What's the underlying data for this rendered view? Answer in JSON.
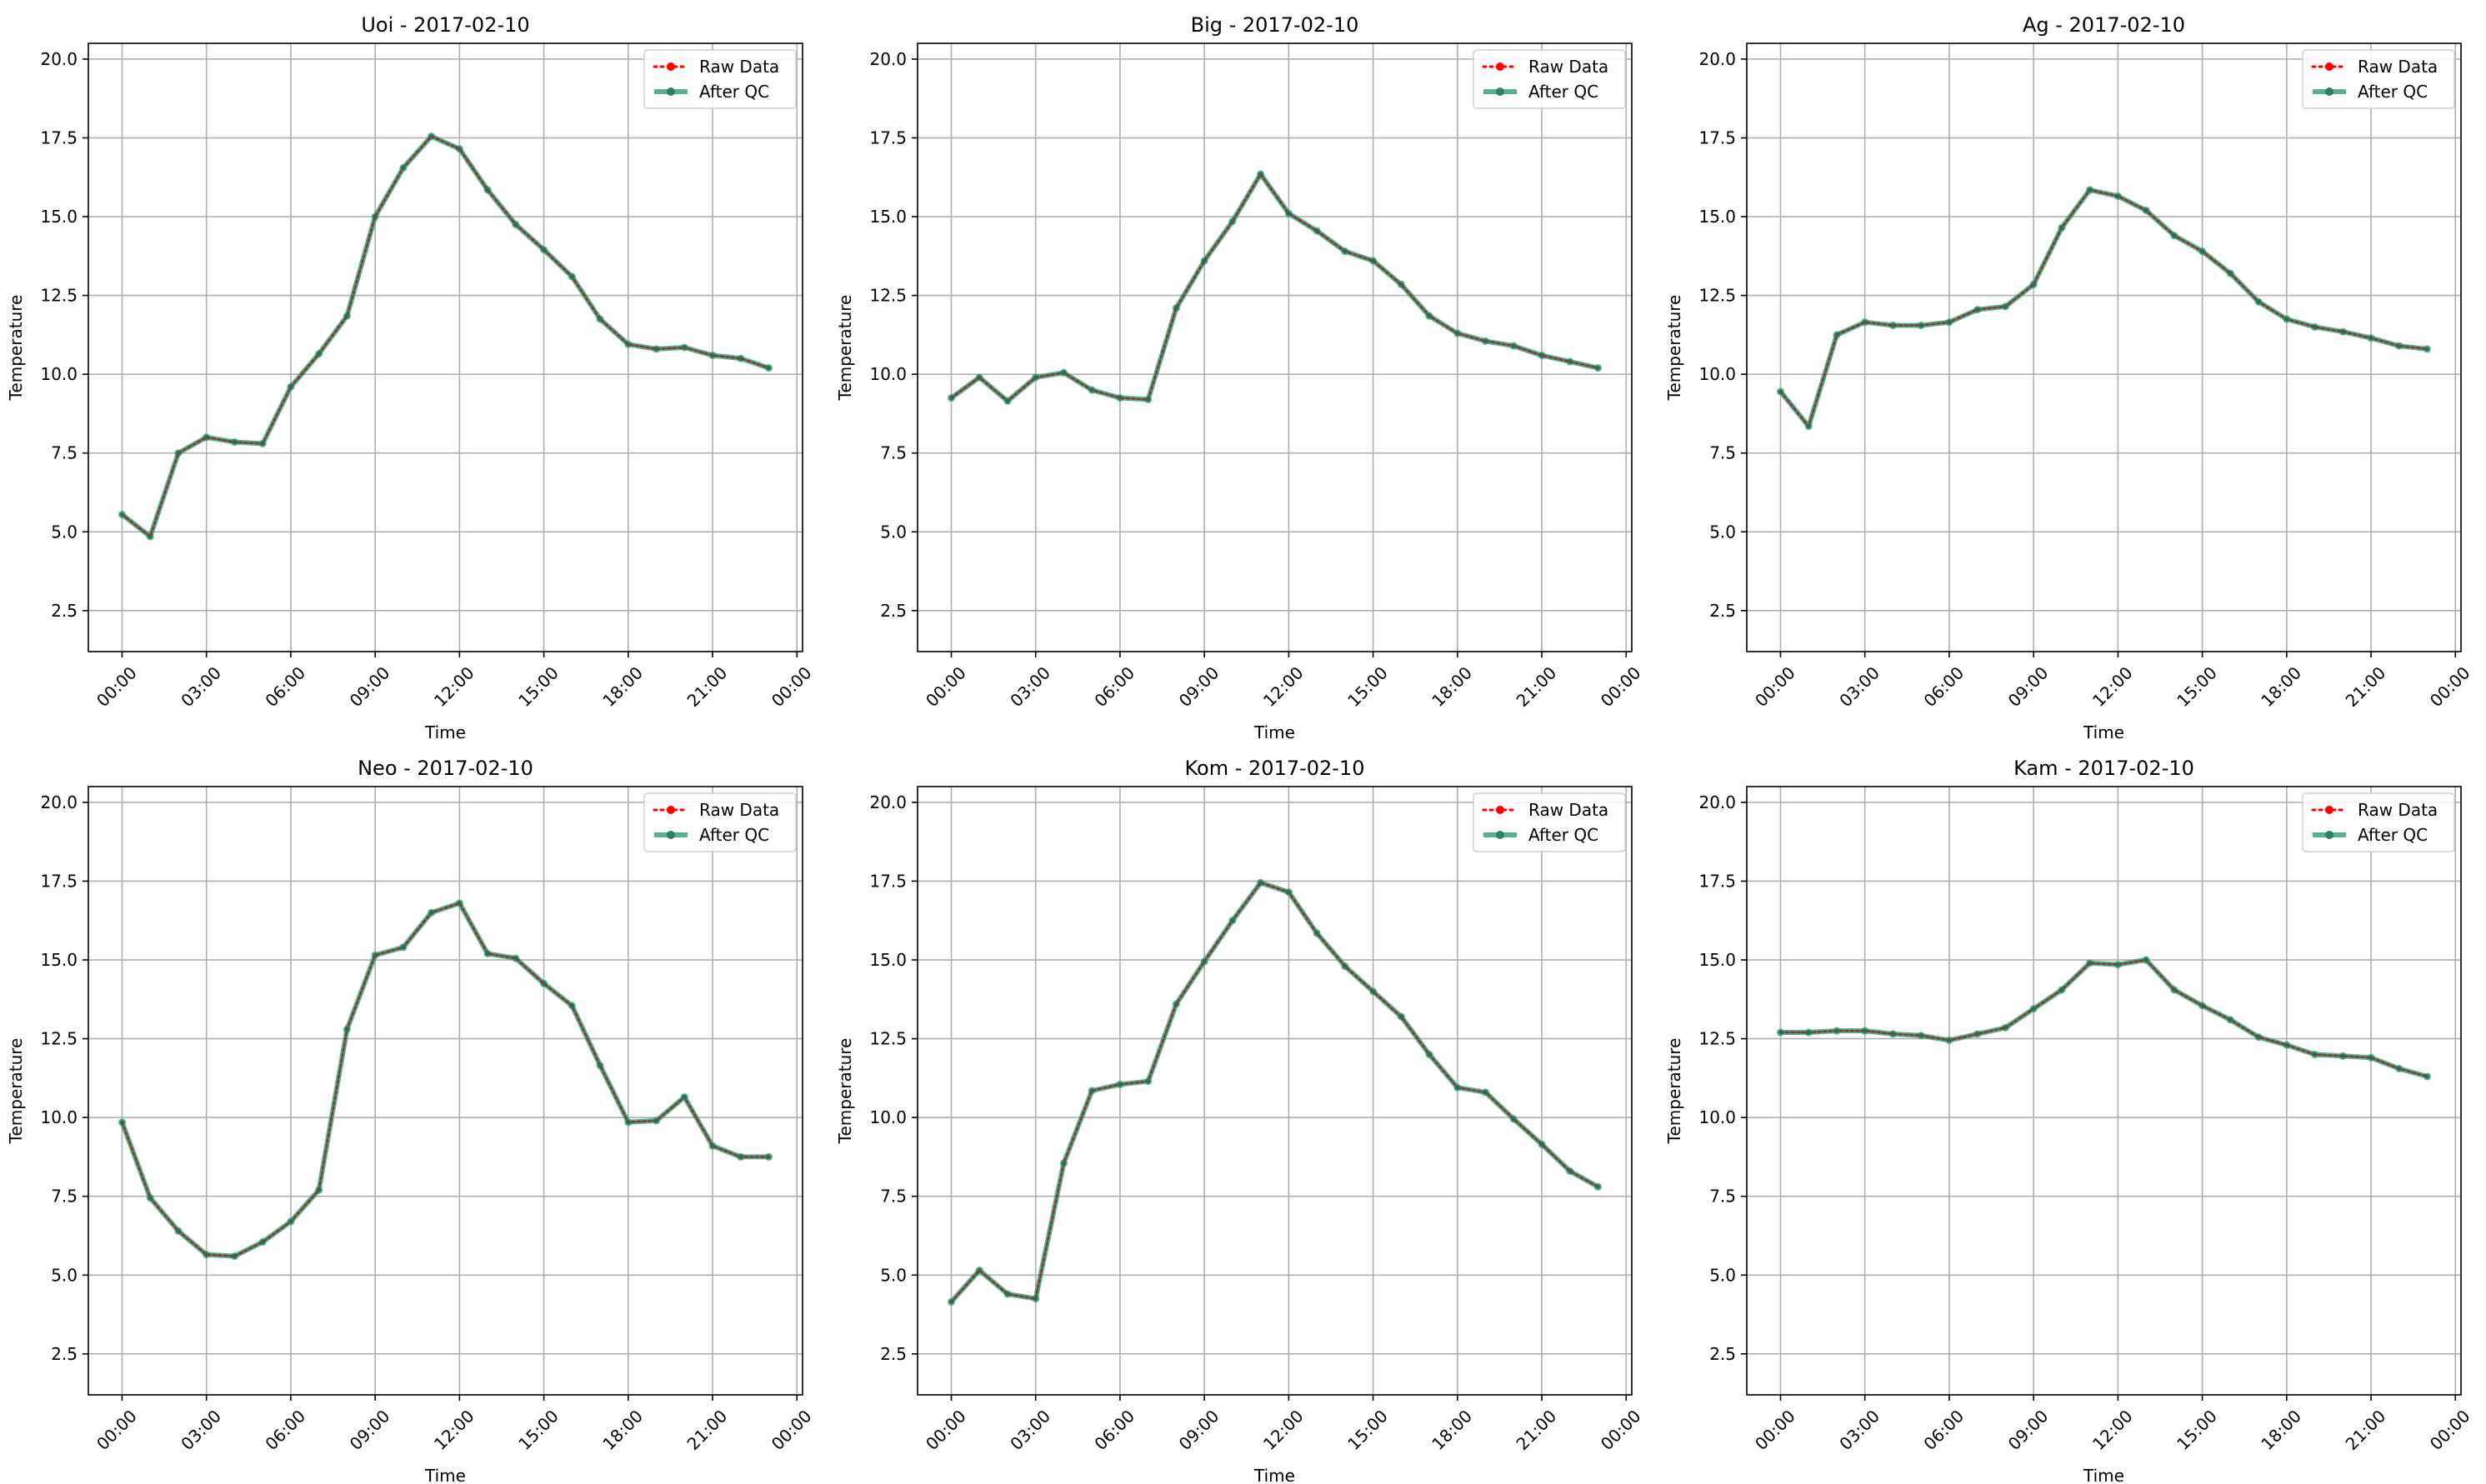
{
  "chart_data": [
    {
      "type": "line",
      "title": "Uoi - 2017-02-10",
      "xlabel": "Time",
      "ylabel": "Temperature",
      "xlim_hours": [
        -1.2,
        24.2
      ],
      "ylim": [
        1.2,
        20.5
      ],
      "xticks": [
        "00:00",
        "03:00",
        "06:00",
        "09:00",
        "12:00",
        "15:00",
        "18:00",
        "21:00",
        "00:00"
      ],
      "yticks": [
        "2.5",
        "5.0",
        "7.5",
        "10.0",
        "12.5",
        "15.0",
        "17.5",
        "20.0"
      ],
      "grid": true,
      "legend_position": "top-right",
      "x": [
        "00:00",
        "01:00",
        "02:00",
        "03:00",
        "04:00",
        "05:00",
        "06:00",
        "07:00",
        "08:00",
        "09:00",
        "10:00",
        "11:00",
        "12:00",
        "13:00",
        "14:00",
        "15:00",
        "16:00",
        "17:00",
        "18:00",
        "19:00",
        "20:00",
        "21:00",
        "22:00",
        "23:00"
      ],
      "series": [
        {
          "name": "Raw Data",
          "color": "#ff0000",
          "values": [
            5.55,
            4.85,
            7.5,
            8.0,
            7.85,
            7.8,
            9.6,
            10.65,
            11.85,
            15.0,
            16.55,
            17.55,
            17.15,
            15.85,
            14.75,
            13.95,
            13.1,
            11.75,
            10.95,
            10.8,
            10.85,
            10.6,
            10.5,
            10.2
          ]
        },
        {
          "name": "After QC",
          "color": "#2a9d76",
          "values": [
            5.55,
            4.85,
            7.5,
            8.0,
            7.85,
            7.8,
            9.6,
            10.65,
            11.85,
            15.0,
            16.55,
            17.55,
            17.15,
            15.85,
            14.75,
            13.95,
            13.1,
            11.75,
            10.95,
            10.8,
            10.85,
            10.6,
            10.5,
            10.2
          ]
        }
      ]
    },
    {
      "type": "line",
      "title": "Big - 2017-02-10",
      "xlabel": "Time",
      "ylabel": "Temperature",
      "xlim_hours": [
        -1.2,
        24.2
      ],
      "ylim": [
        1.2,
        20.5
      ],
      "xticks": [
        "00:00",
        "03:00",
        "06:00",
        "09:00",
        "12:00",
        "15:00",
        "18:00",
        "21:00",
        "00:00"
      ],
      "yticks": [
        "2.5",
        "5.0",
        "7.5",
        "10.0",
        "12.5",
        "15.0",
        "17.5",
        "20.0"
      ],
      "grid": true,
      "legend_position": "top-right",
      "x": [
        "00:00",
        "01:00",
        "02:00",
        "03:00",
        "04:00",
        "05:00",
        "06:00",
        "07:00",
        "08:00",
        "09:00",
        "10:00",
        "11:00",
        "12:00",
        "13:00",
        "14:00",
        "15:00",
        "16:00",
        "17:00",
        "18:00",
        "19:00",
        "20:00",
        "21:00",
        "22:00",
        "23:00"
      ],
      "series": [
        {
          "name": "Raw Data",
          "color": "#ff0000",
          "values": [
            9.25,
            9.9,
            9.15,
            9.9,
            10.05,
            9.5,
            9.25,
            9.2,
            12.1,
            13.6,
            14.85,
            16.35,
            15.1,
            14.55,
            13.9,
            13.6,
            12.85,
            11.85,
            11.3,
            11.05,
            10.9,
            10.6,
            10.4,
            10.2
          ]
        },
        {
          "name": "After QC",
          "color": "#2a9d76",
          "values": [
            9.25,
            9.9,
            9.15,
            9.9,
            10.05,
            9.5,
            9.25,
            9.2,
            12.1,
            13.6,
            14.85,
            16.35,
            15.1,
            14.55,
            13.9,
            13.6,
            12.85,
            11.85,
            11.3,
            11.05,
            10.9,
            10.6,
            10.4,
            10.2
          ]
        }
      ]
    },
    {
      "type": "line",
      "title": "Ag - 2017-02-10",
      "xlabel": "Time",
      "ylabel": "Temperature",
      "xlim_hours": [
        -1.2,
        24.2
      ],
      "ylim": [
        1.2,
        20.5
      ],
      "xticks": [
        "00:00",
        "03:00",
        "06:00",
        "09:00",
        "12:00",
        "15:00",
        "18:00",
        "21:00",
        "00:00"
      ],
      "yticks": [
        "2.5",
        "5.0",
        "7.5",
        "10.0",
        "12.5",
        "15.0",
        "17.5",
        "20.0"
      ],
      "grid": true,
      "legend_position": "top-right",
      "x": [
        "00:00",
        "01:00",
        "02:00",
        "03:00",
        "04:00",
        "05:00",
        "06:00",
        "07:00",
        "08:00",
        "09:00",
        "10:00",
        "11:00",
        "12:00",
        "13:00",
        "14:00",
        "15:00",
        "16:00",
        "17:00",
        "18:00",
        "19:00",
        "20:00",
        "21:00",
        "22:00",
        "23:00"
      ],
      "series": [
        {
          "name": "Raw Data",
          "color": "#ff0000",
          "values": [
            9.45,
            8.35,
            11.25,
            11.65,
            11.55,
            11.55,
            11.65,
            12.05,
            12.15,
            12.85,
            14.65,
            15.85,
            15.65,
            15.2,
            14.4,
            13.9,
            13.2,
            12.3,
            11.75,
            11.5,
            11.35,
            11.15,
            10.9,
            10.8
          ]
        },
        {
          "name": "After QC",
          "color": "#2a9d76",
          "values": [
            9.45,
            8.35,
            11.25,
            11.65,
            11.55,
            11.55,
            11.65,
            12.05,
            12.15,
            12.85,
            14.65,
            15.85,
            15.65,
            15.2,
            14.4,
            13.9,
            13.2,
            12.3,
            11.75,
            11.5,
            11.35,
            11.15,
            10.9,
            10.8
          ]
        }
      ]
    },
    {
      "type": "line",
      "title": "Neo - 2017-02-10",
      "xlabel": "Time",
      "ylabel": "Temperature",
      "xlim_hours": [
        -1.2,
        24.2
      ],
      "ylim": [
        1.2,
        20.5
      ],
      "xticks": [
        "00:00",
        "03:00",
        "06:00",
        "09:00",
        "12:00",
        "15:00",
        "18:00",
        "21:00",
        "00:00"
      ],
      "yticks": [
        "2.5",
        "5.0",
        "7.5",
        "10.0",
        "12.5",
        "15.0",
        "17.5",
        "20.0"
      ],
      "grid": true,
      "legend_position": "top-right",
      "x": [
        "00:00",
        "01:00",
        "02:00",
        "03:00",
        "04:00",
        "05:00",
        "06:00",
        "07:00",
        "08:00",
        "09:00",
        "10:00",
        "11:00",
        "12:00",
        "13:00",
        "14:00",
        "15:00",
        "16:00",
        "17:00",
        "18:00",
        "19:00",
        "20:00",
        "21:00",
        "22:00",
        "23:00"
      ],
      "series": [
        {
          "name": "Raw Data",
          "color": "#ff0000",
          "values": [
            9.85,
            7.45,
            6.4,
            5.65,
            5.6,
            6.05,
            6.7,
            7.7,
            12.8,
            15.15,
            15.4,
            16.5,
            16.8,
            15.2,
            15.05,
            14.25,
            13.55,
            11.65,
            9.85,
            9.9,
            10.65,
            9.1,
            8.75,
            8.75
          ]
        },
        {
          "name": "After QC",
          "color": "#2a9d76",
          "values": [
            9.85,
            7.45,
            6.4,
            5.65,
            5.6,
            6.05,
            6.7,
            7.7,
            12.8,
            15.15,
            15.4,
            16.5,
            16.8,
            15.2,
            15.05,
            14.25,
            13.55,
            11.65,
            9.85,
            9.9,
            10.65,
            9.1,
            8.75,
            8.75
          ]
        }
      ]
    },
    {
      "type": "line",
      "title": "Kom - 2017-02-10",
      "xlabel": "Time",
      "ylabel": "Temperature",
      "xlim_hours": [
        -1.2,
        24.2
      ],
      "ylim": [
        1.2,
        20.5
      ],
      "xticks": [
        "00:00",
        "03:00",
        "06:00",
        "09:00",
        "12:00",
        "15:00",
        "18:00",
        "21:00",
        "00:00"
      ],
      "yticks": [
        "2.5",
        "5.0",
        "7.5",
        "10.0",
        "12.5",
        "15.0",
        "17.5",
        "20.0"
      ],
      "grid": true,
      "legend_position": "top-right",
      "x": [
        "00:00",
        "01:00",
        "02:00",
        "03:00",
        "04:00",
        "05:00",
        "06:00",
        "07:00",
        "08:00",
        "09:00",
        "10:00",
        "11:00",
        "12:00",
        "13:00",
        "14:00",
        "15:00",
        "16:00",
        "17:00",
        "18:00",
        "19:00",
        "20:00",
        "21:00",
        "22:00",
        "23:00"
      ],
      "series": [
        {
          "name": "Raw Data",
          "color": "#ff0000",
          "values": [
            4.15,
            5.15,
            4.4,
            4.25,
            8.55,
            10.85,
            11.05,
            11.15,
            13.6,
            14.95,
            16.25,
            17.45,
            17.15,
            15.85,
            14.8,
            14.0,
            13.2,
            12.0,
            10.95,
            10.8,
            9.95,
            9.15,
            8.3,
            7.8
          ]
        },
        {
          "name": "After QC",
          "color": "#2a9d76",
          "values": [
            4.15,
            5.15,
            4.4,
            4.25,
            8.55,
            10.85,
            11.05,
            11.15,
            13.6,
            14.95,
            16.25,
            17.45,
            17.15,
            15.85,
            14.8,
            14.0,
            13.2,
            12.0,
            10.95,
            10.8,
            9.95,
            9.15,
            8.3,
            7.8
          ]
        }
      ]
    },
    {
      "type": "line",
      "title": "Kam - 2017-02-10",
      "xlabel": "Time",
      "ylabel": "Temperature",
      "xlim_hours": [
        -1.2,
        24.2
      ],
      "ylim": [
        1.2,
        20.5
      ],
      "xticks": [
        "00:00",
        "03:00",
        "06:00",
        "09:00",
        "12:00",
        "15:00",
        "18:00",
        "21:00",
        "00:00"
      ],
      "yticks": [
        "2.5",
        "5.0",
        "7.5",
        "10.0",
        "12.5",
        "15.0",
        "17.5",
        "20.0"
      ],
      "grid": true,
      "legend_position": "top-right",
      "x": [
        "00:00",
        "01:00",
        "02:00",
        "03:00",
        "04:00",
        "05:00",
        "06:00",
        "07:00",
        "08:00",
        "09:00",
        "10:00",
        "11:00",
        "12:00",
        "13:00",
        "14:00",
        "15:00",
        "16:00",
        "17:00",
        "18:00",
        "19:00",
        "20:00",
        "21:00",
        "22:00",
        "23:00"
      ],
      "series": [
        {
          "name": "Raw Data",
          "color": "#ff0000",
          "values": [
            12.7,
            12.7,
            12.75,
            12.75,
            12.65,
            12.6,
            12.45,
            12.65,
            12.85,
            13.45,
            14.05,
            14.9,
            14.85,
            15.0,
            14.05,
            13.55,
            13.1,
            12.55,
            12.3,
            12.0,
            11.95,
            11.9,
            11.55,
            11.3
          ]
        },
        {
          "name": "After QC",
          "color": "#2a9d76",
          "values": [
            12.7,
            12.7,
            12.75,
            12.75,
            12.65,
            12.6,
            12.45,
            12.65,
            12.85,
            13.45,
            14.05,
            14.9,
            14.85,
            15.0,
            14.05,
            13.55,
            13.1,
            12.55,
            12.3,
            12.0,
            11.95,
            11.9,
            11.55,
            11.3
          ]
        }
      ]
    }
  ]
}
